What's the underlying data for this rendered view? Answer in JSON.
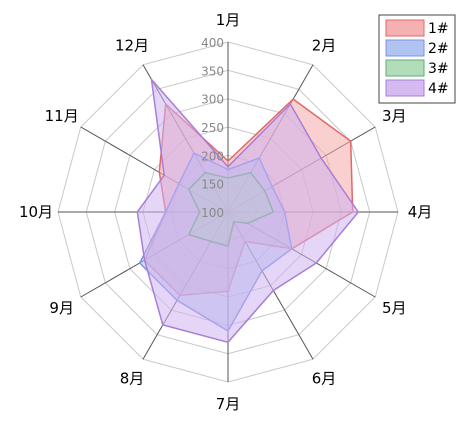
{
  "chart_data": {
    "type": "radar",
    "categories": [
      "1月",
      "2月",
      "3月",
      "4月",
      "5月",
      "6月",
      "7月",
      "8月",
      "9月",
      "10月",
      "11月",
      "12月"
    ],
    "rlim": [
      100,
      400
    ],
    "ticks": [
      100,
      150,
      200,
      250,
      300,
      350,
      400
    ],
    "grid": true,
    "legend_position": "top-right",
    "series": [
      {
        "name": "1#",
        "color": "#e26868",
        "fill": "#f4a8a8",
        "values": [
          190,
          330,
          350,
          320,
          230,
          160,
          240,
          270,
          270,
          210,
          240,
          320
        ]
      },
      {
        "name": "2#",
        "color": "#7f8fe8",
        "fill": "#a8bef0",
        "values": [
          175,
          210,
          190,
          200,
          230,
          220,
          310,
          280,
          280,
          210,
          200,
          220
        ]
      },
      {
        "name": "3#",
        "color": "#5fae72",
        "fill": "#a9d9b4",
        "values": [
          160,
          180,
          175,
          180,
          140,
          120,
          160,
          160,
          180,
          150,
          180,
          180
        ]
      },
      {
        "name": "4#",
        "color": "#a77fd6",
        "fill": "#cfb2f0",
        "values": [
          180,
          320,
          290,
          330,
          280,
          260,
          330,
          330,
          270,
          260,
          230,
          370
        ]
      }
    ]
  }
}
